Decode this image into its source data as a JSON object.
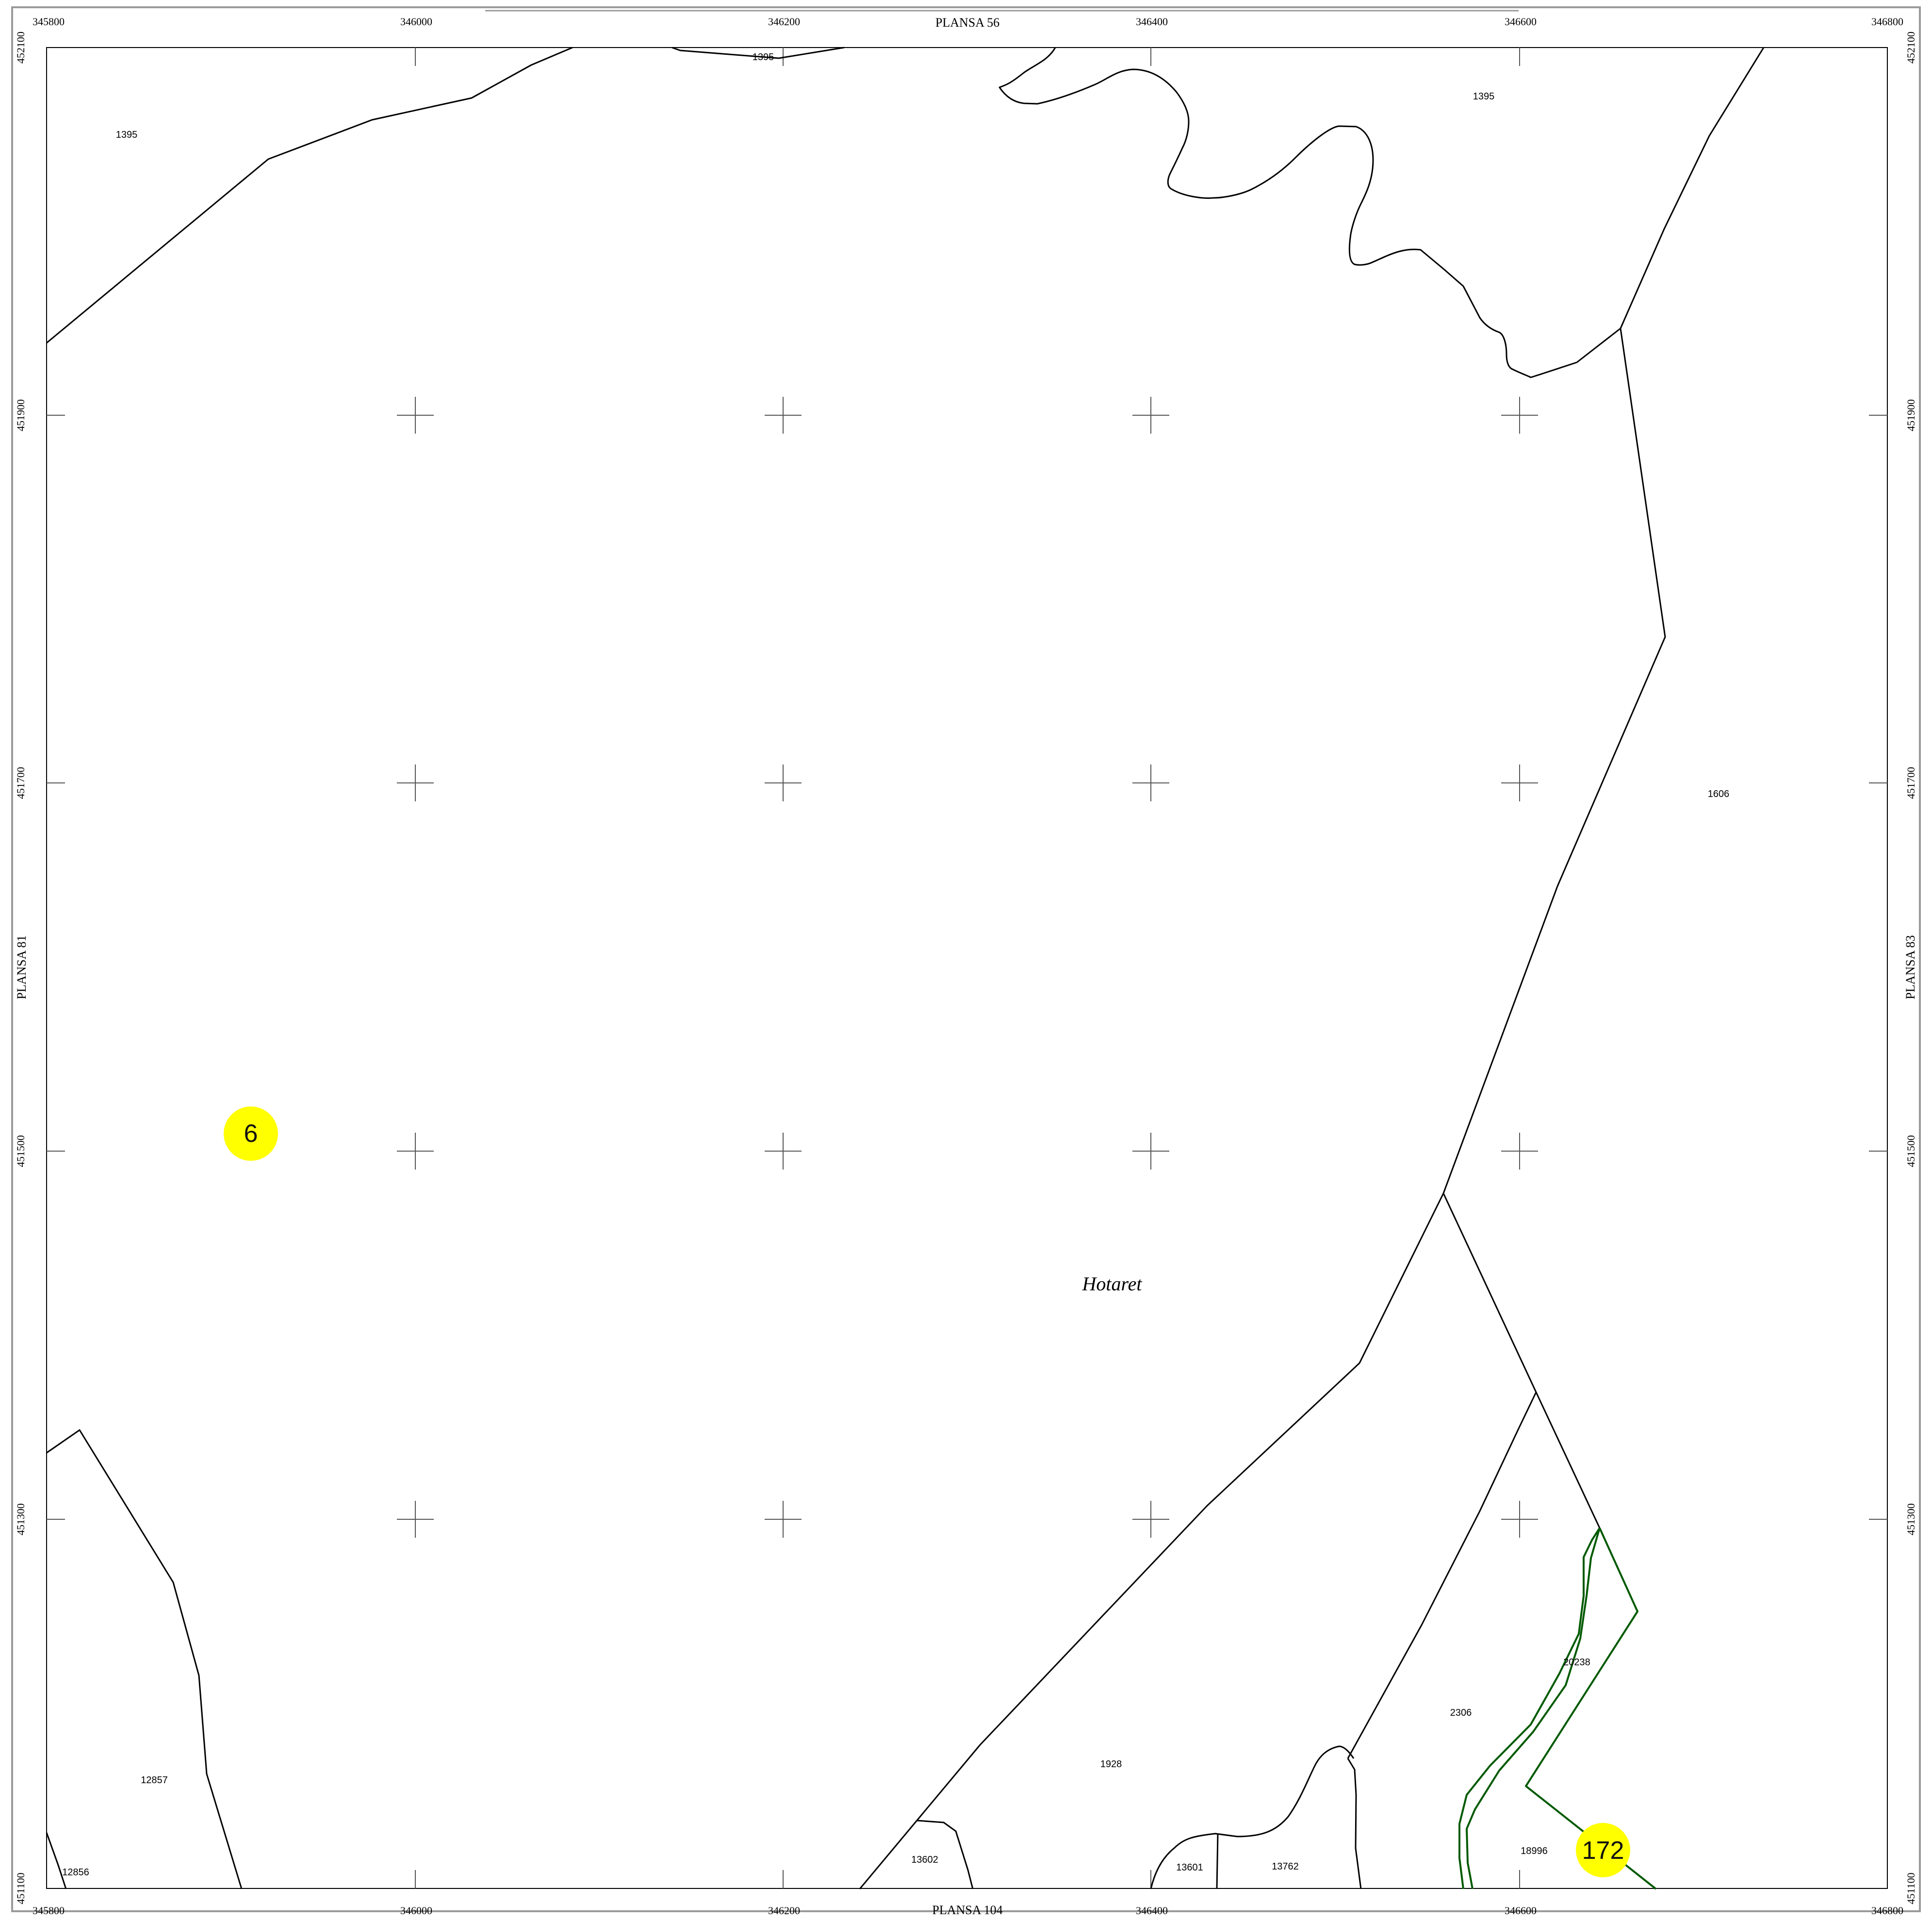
{
  "sheet": {
    "neighbors": {
      "top": "PLANSA  56",
      "bottom": "PLANSA  104",
      "left": "PLANSA  81",
      "right": "PLANSA  83"
    },
    "x_ticks": [
      "345800",
      "346000",
      "346200",
      "346400",
      "346600",
      "346800"
    ],
    "y_ticks": [
      "452100",
      "451900",
      "451700",
      "451500",
      "451300",
      "451100"
    ]
  },
  "map": {
    "place_name": "Hotaret",
    "parcel_numbers": {
      "p1395_top": "1395",
      "p1395_left": "1395",
      "p1395_right": "1395",
      "p1606": "1606",
      "p20238": "20238",
      "p2306": "2306",
      "p1928": "1928",
      "p12857": "12857",
      "p12856": "12856",
      "p13602": "13602",
      "p13601": "13601",
      "p13762": "13762",
      "p18996": "18996"
    },
    "markers": {
      "m6": "6",
      "m172": "172"
    },
    "colors": {
      "boundary": "#000000",
      "highlight_parcel": "#005a00",
      "marker_fill": "#ffff00",
      "grid": "#555555"
    }
  }
}
